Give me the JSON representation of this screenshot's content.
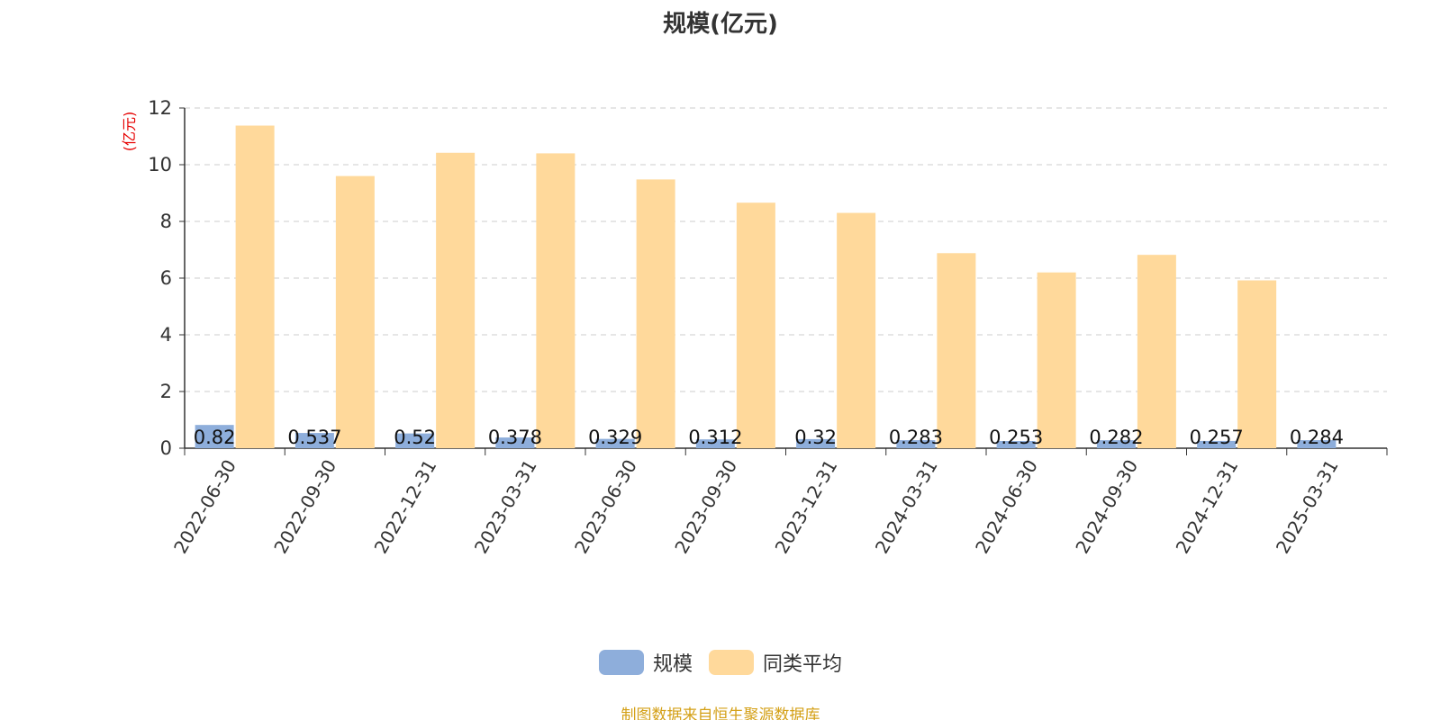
{
  "chart_data": {
    "type": "bar",
    "title": "规模(亿元)",
    "ylabel": "(亿元)",
    "xlabel": "",
    "ylim": [
      0,
      12
    ],
    "yticks": [
      0,
      2,
      4,
      6,
      8,
      10,
      12
    ],
    "grid": true,
    "legend_position": "bottom",
    "categories": [
      "2022-06-30",
      "2022-09-30",
      "2022-12-31",
      "2023-03-31",
      "2023-06-30",
      "2023-09-30",
      "2023-12-31",
      "2024-03-31",
      "2024-06-30",
      "2024-09-30",
      "2024-12-31",
      "2025-03-31"
    ],
    "series": [
      {
        "name": "规模",
        "color": "#8eaedb",
        "values": [
          0.82,
          0.537,
          0.52,
          0.378,
          0.329,
          0.312,
          0.32,
          0.283,
          0.253,
          0.282,
          0.257,
          0.284
        ],
        "data_labels": [
          "0.82",
          "0.537",
          "0.52",
          "0.378",
          "0.329",
          "0.312",
          "0.32",
          "0.283",
          "0.253",
          "0.282",
          "0.257",
          "0.284"
        ]
      },
      {
        "name": "同类平均",
        "color": "#ffd99b",
        "values": [
          11.38,
          9.6,
          10.42,
          10.4,
          9.48,
          8.66,
          8.3,
          6.88,
          6.2,
          6.82,
          5.92,
          null
        ]
      }
    ]
  },
  "colors": {
    "title": "#333333",
    "axis": "#333333",
    "ylabel": "#e60000",
    "grid": "#cccccc",
    "source": "#d4a017"
  },
  "footer": {
    "source": "制图数据来自恒生聚源数据库"
  }
}
